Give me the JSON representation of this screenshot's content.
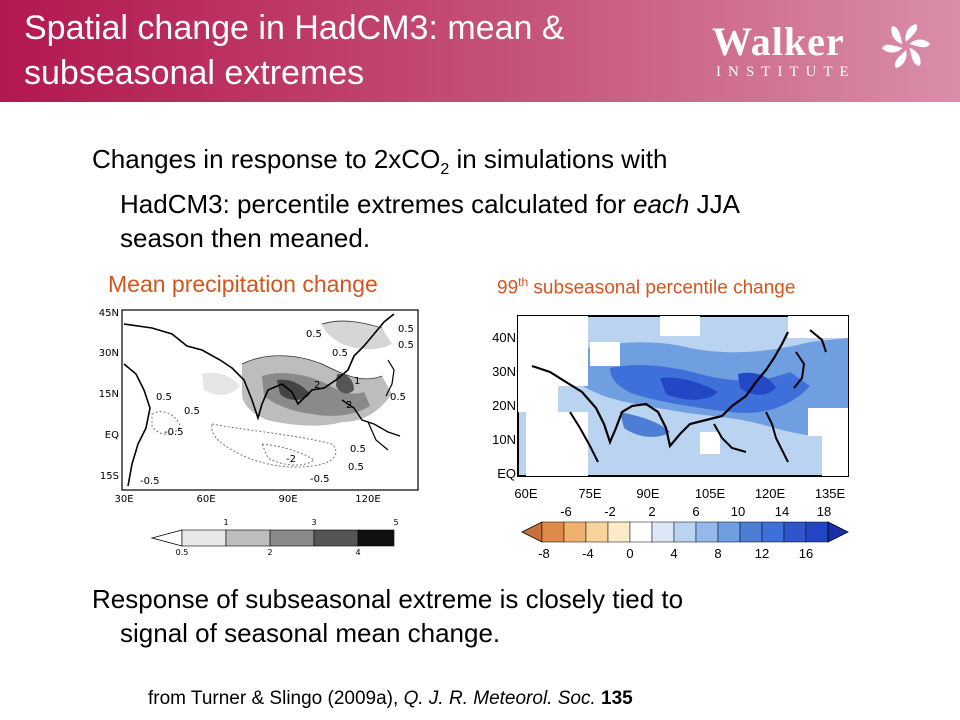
{
  "header": {
    "title_line1": "Spatial change in HadCM3: mean &",
    "title_line2": "subseasonal extremes",
    "logo_word": "Walker",
    "logo_sub": "INSTITUTE"
  },
  "bullet1": {
    "line1_a": "Changes in response to 2xCO",
    "line1_sub": "2",
    "line1_b": " in simulations with",
    "line2_a": "HadCM3: percentile extremes calculated for ",
    "line2_em": "each",
    "line2_b": " JJA",
    "line3": "season then meaned."
  },
  "panel_left": {
    "label": "Mean precipitation change",
    "lat_ticks": [
      "45N",
      "30N",
      "15N",
      "EQ",
      "15S"
    ],
    "lon_ticks": [
      "30E",
      "60E",
      "90E",
      "120E"
    ],
    "contour_labels": [
      "0.5",
      "0.5",
      "0.5",
      "0.5",
      "0.5",
      "0.5",
      "0.5",
      "1",
      "2",
      "2",
      "-0.5",
      "-0.5",
      "-2",
      "-0.5",
      "0.5",
      "0.5"
    ],
    "colorbar_top": [
      "1",
      "3",
      "5"
    ],
    "colorbar_bottom": [
      "0.5",
      "2",
      "4"
    ]
  },
  "panel_right": {
    "label_a": "99",
    "label_sup": "th",
    "label_b": " subseasonal percentile change",
    "lat_ticks": [
      "40N",
      "30N",
      "20N",
      "10N",
      "EQ"
    ],
    "lon_ticks": [
      "60E",
      "75E",
      "90E",
      "105E",
      "120E",
      "135E"
    ],
    "colorbar_top": [
      "-6",
      "-2",
      "2",
      "6",
      "10",
      "14",
      "18"
    ],
    "colorbar_bottom": [
      "-8",
      "-4",
      "0",
      "4",
      "8",
      "12",
      "16"
    ]
  },
  "bullet2": {
    "line1": "Response of subseasonal extreme is closely tied to",
    "line2": "signal of seasonal mean change."
  },
  "citation": {
    "part1": "from Turner & Slingo (2009a), ",
    "journal": "Q. J. R. Meteorol. Soc.",
    "part2": " ",
    "volume": "135"
  },
  "colors": {
    "header": "#b3174f",
    "panel_label": "#d2561e"
  }
}
